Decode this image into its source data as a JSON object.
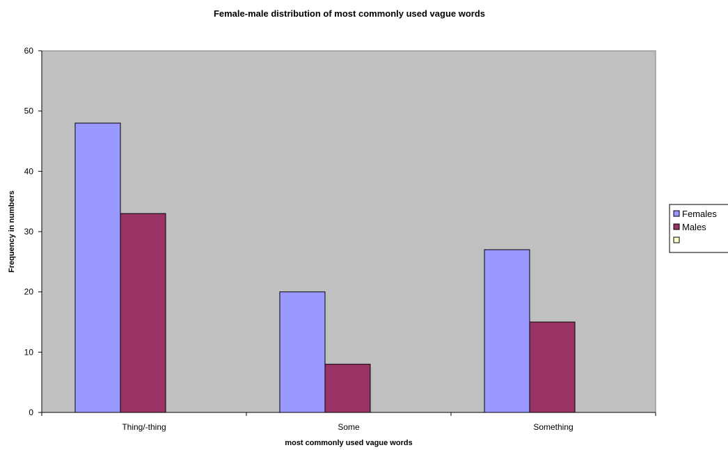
{
  "chart_data": {
    "type": "bar",
    "title": "Female-male distribution of most commonly used vague words",
    "xlabel": "most commonly used vague words",
    "ylabel": "Frequency in numbers",
    "categories": [
      "Thing/-thing",
      "Some",
      "Something"
    ],
    "series": [
      {
        "name": "Females",
        "values": [
          48,
          20,
          27
        ],
        "color": "#9999ff"
      },
      {
        "name": "Males",
        "values": [
          33,
          8,
          15
        ],
        "color": "#993366"
      }
    ],
    "legend_extra_swatch_color": "#ffffcc",
    "ylim": [
      0,
      60
    ],
    "yticks": [
      0,
      10,
      20,
      30,
      40,
      50,
      60
    ],
    "grid": false,
    "plot_background": "#c0c0c0",
    "legend_position": "right"
  }
}
